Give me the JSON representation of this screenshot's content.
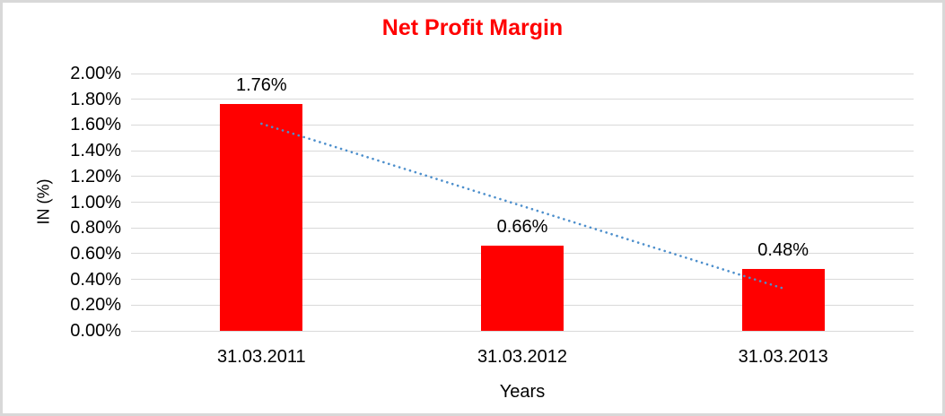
{
  "chart_data": {
    "type": "bar",
    "title": "Net Profit Margin",
    "xlabel": "Years",
    "ylabel": "IN (%)",
    "categories": [
      "31.03.2011",
      "31.03.2012",
      "31.03.2013"
    ],
    "values": [
      1.76,
      0.66,
      0.48
    ],
    "data_labels": [
      "1.76%",
      "0.66%",
      "0.48%"
    ],
    "ylim": [
      0,
      2.0
    ],
    "ytick_step": 0.2,
    "ytick_labels": [
      "0.00%",
      "0.20%",
      "0.40%",
      "0.60%",
      "0.80%",
      "1.00%",
      "1.20%",
      "1.40%",
      "1.60%",
      "1.80%",
      "2.00%"
    ],
    "grid": true,
    "legend": "none",
    "colors": {
      "bar": "#ff0000",
      "title": "#ff0000",
      "trendline": "#4d8fcc",
      "gridline": "#d9d9d9",
      "text": "#000000"
    },
    "trendline": {
      "style": "dotted",
      "start_value": 1.61,
      "end_value": 0.33
    }
  }
}
